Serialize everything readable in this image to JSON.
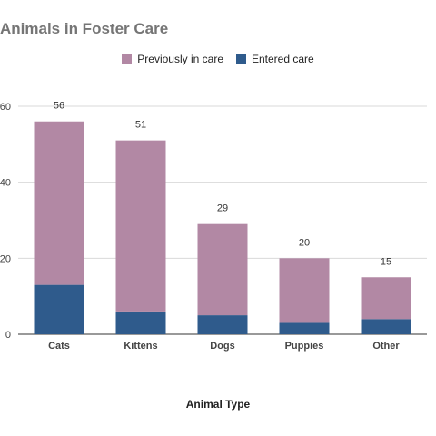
{
  "chart_data": {
    "type": "bar",
    "stacked": true,
    "title": "Animals in Foster Care",
    "xlabel": "Animal Type",
    "ylabel": "",
    "categories": [
      "Cats",
      "Kittens",
      "Dogs",
      "Puppies",
      "Other"
    ],
    "series": [
      {
        "name": "Entered care",
        "values": [
          13,
          6,
          5,
          3,
          4
        ],
        "color": "#2f5b8c"
      },
      {
        "name": "Previously in care",
        "values": [
          43,
          45,
          24,
          17,
          11
        ],
        "color": "#b288a4"
      }
    ],
    "totals": [
      56,
      51,
      29,
      20,
      15
    ],
    "ylim": [
      0,
      60
    ],
    "yticks": [
      0,
      20,
      40,
      60
    ],
    "grid": true,
    "legend_position": "top"
  }
}
